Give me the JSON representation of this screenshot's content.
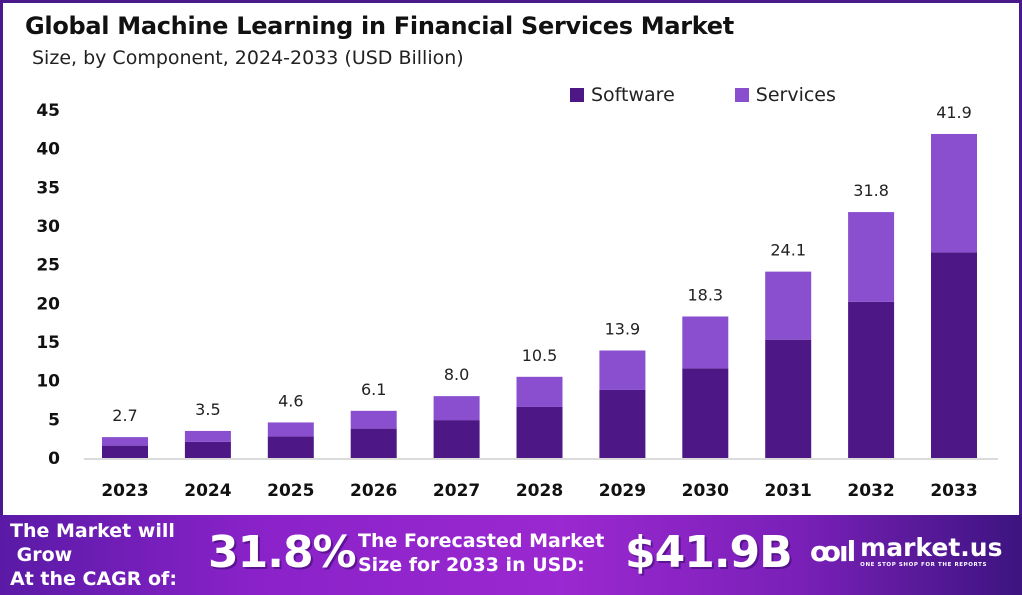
{
  "chart_data": {
    "type": "bar",
    "stacked": true,
    "title": "Global Machine Learning in Financial Services Market",
    "subtitle": "Size, by Component, 2024-2033 (USD Billion)",
    "xlabel": "",
    "ylabel": "",
    "ylim": [
      0,
      45
    ],
    "yticks": [
      0,
      5,
      10,
      15,
      20,
      25,
      30,
      35,
      40,
      45
    ],
    "grid": false,
    "legend_position": "top-right",
    "categories": [
      "2023",
      "2024",
      "2025",
      "2026",
      "2027",
      "2028",
      "2029",
      "2030",
      "2031",
      "2032",
      "2033"
    ],
    "totals": [
      2.7,
      3.5,
      4.6,
      6.1,
      8.0,
      10.5,
      13.9,
      18.3,
      24.1,
      31.8,
      41.9
    ],
    "total_labels": [
      "2.7",
      "3.5",
      "4.6",
      "6.1",
      "8.0",
      "10.5",
      "13.9",
      "18.3",
      "24.1",
      "31.8",
      "41.9"
    ],
    "series": [
      {
        "name": "Software",
        "color": "#4e1786",
        "values": [
          1.6,
          2.1,
          2.8,
          3.8,
          4.9,
          6.6,
          8.8,
          11.6,
          15.3,
          20.2,
          26.6
        ]
      },
      {
        "name": "Services",
        "color": "#8a4fcf",
        "values": [
          1.1,
          1.4,
          1.8,
          2.3,
          3.1,
          3.9,
          5.1,
          6.7,
          8.8,
          11.6,
          15.3
        ]
      }
    ]
  },
  "banner": {
    "cagr_text": "The Market will Grow At the CAGR of:",
    "cagr_line1": "The Market will",
    "cagr_line2": " Grow",
    "cagr_line3": "At the CAGR of:",
    "cagr_value": "31.8%",
    "size_line1": "The Forecasted Market",
    "size_line2": "Size for 2033 in USD:",
    "size_value": "$41.9B",
    "logo_icon": "ꝏıl",
    "logo_name": "market.us",
    "logo_tagline": "ONE STOP SHOP FOR THE REPORTS"
  }
}
